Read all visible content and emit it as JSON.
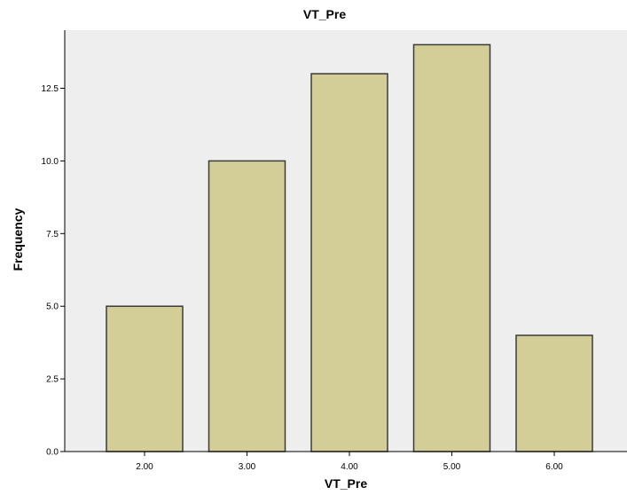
{
  "chart_data": {
    "type": "bar",
    "title": "VT_Pre",
    "xlabel": "VT_Pre",
    "ylabel": "Frequency",
    "categories": [
      "2.00",
      "3.00",
      "4.00",
      "5.00",
      "6.00"
    ],
    "values": [
      5,
      10,
      13,
      14,
      4
    ],
    "ylim": [
      0,
      14.5
    ],
    "yticks": [
      "0.0",
      "2.5",
      "5.0",
      "7.5",
      "10.0",
      "12.5"
    ],
    "grid": false,
    "legend": "none",
    "colors": {
      "plot_background": "#eeeeee",
      "bar_fill": "#d3ce97",
      "bar_stroke": "#3a3a3a",
      "axis": "#000000"
    }
  }
}
